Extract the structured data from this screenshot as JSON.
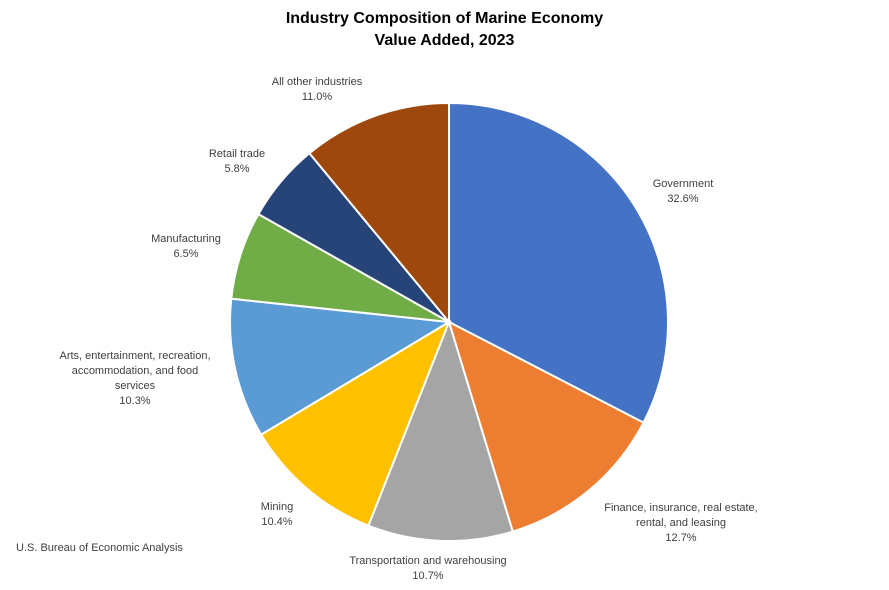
{
  "chart_data": {
    "type": "pie",
    "title": "Industry Composition of Marine Economy\nValue Added, 2023",
    "start": "12 o'clock, clockwise",
    "slices": [
      {
        "name": "Government",
        "value": 32.6,
        "label": "32.6%",
        "color": "#4472C4"
      },
      {
        "name": "Finance, insurance, real estate,\nrental, and leasing",
        "value": 12.7,
        "label": "12.7%",
        "color": "#ED7D31"
      },
      {
        "name": "Transportation and warehousing",
        "value": 10.7,
        "label": "10.7%",
        "color": "#A5A5A5"
      },
      {
        "name": "Mining",
        "value": 10.4,
        "label": "10.4%",
        "color": "#FFC000"
      },
      {
        "name": "Arts, entertainment, recreation,\naccommodation, and food\nservices",
        "value": 10.3,
        "label": "10.3%",
        "color": "#5B9BD5"
      },
      {
        "name": "Manufacturing",
        "value": 6.5,
        "label": "6.5%",
        "color": "#70AD47"
      },
      {
        "name": "Retail trade",
        "value": 5.8,
        "label": "5.8%",
        "color": "#264478"
      },
      {
        "name": "All other industries",
        "value": 11.0,
        "label": "11.0%",
        "color": "#9E480E"
      }
    ]
  },
  "source": "U.S. Bureau of Economic Analysis"
}
